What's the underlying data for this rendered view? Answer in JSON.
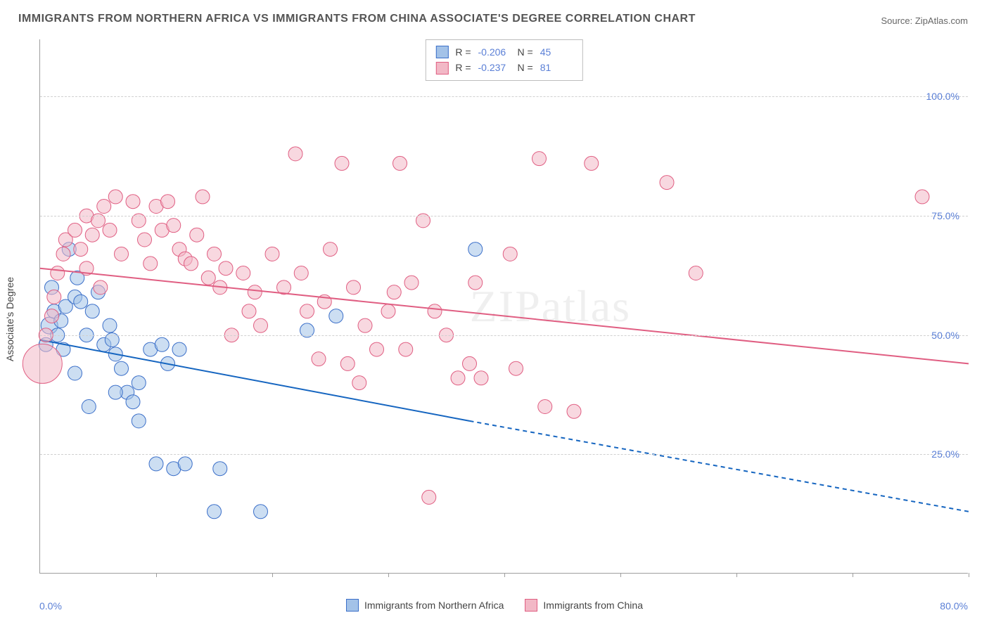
{
  "chart": {
    "type": "scatter",
    "title": "IMMIGRANTS FROM NORTHERN AFRICA VS IMMIGRANTS FROM CHINA ASSOCIATE'S DEGREE CORRELATION CHART",
    "source": "Source: ZipAtlas.com",
    "watermark": "ZIPatlas",
    "y_axis_title": "Associate's Degree",
    "xlim": [
      0,
      80
    ],
    "ylim": [
      0,
      112
    ],
    "x_ticks": [
      0,
      10,
      20,
      30,
      40,
      50,
      60,
      70,
      80
    ],
    "y_gridlines": [
      25,
      50,
      75,
      100
    ],
    "y_tick_labels": [
      "25.0%",
      "50.0%",
      "75.0%",
      "100.0%"
    ],
    "x_min_label": "0.0%",
    "x_max_label": "80.0%",
    "background_color": "#ffffff",
    "grid_color": "#d0d0d0",
    "axis_color": "#9e9e9e",
    "tick_label_color": "#5a7fd6",
    "title_color": "#555555",
    "title_fontsize": 16,
    "label_fontsize": 14
  },
  "series": [
    {
      "name": "Immigrants from Northern Africa",
      "fill_color": "#a3c2e8",
      "stroke_color": "#3b6fc9",
      "line_color": "#1565c0",
      "fill_opacity": 0.55,
      "marker_radius": 10,
      "r_value": "-0.206",
      "n_value": "45",
      "trend": {
        "x1": 0,
        "y1": 49,
        "x2": 37,
        "y2": 32,
        "x2_ext": 80,
        "y2_ext": 13
      },
      "points": [
        [
          0.5,
          48
        ],
        [
          0.8,
          52,
          12
        ],
        [
          1.0,
          60
        ],
        [
          1.2,
          55
        ],
        [
          1.5,
          50
        ],
        [
          1.8,
          53
        ],
        [
          2.0,
          47
        ],
        [
          2.2,
          56
        ],
        [
          2.5,
          68
        ],
        [
          3.0,
          58
        ],
        [
          3.2,
          62
        ],
        [
          3.5,
          57
        ],
        [
          4.0,
          50
        ],
        [
          4.5,
          55
        ],
        [
          5.0,
          59
        ],
        [
          5.5,
          48
        ],
        [
          6.0,
          52
        ],
        [
          6.2,
          49
        ],
        [
          6.5,
          46
        ],
        [
          7.0,
          43
        ],
        [
          7.5,
          38
        ],
        [
          8.0,
          36
        ],
        [
          8.5,
          40
        ],
        [
          4.2,
          35
        ],
        [
          3.0,
          42
        ],
        [
          9.5,
          47
        ],
        [
          10.5,
          48
        ],
        [
          11.0,
          44
        ],
        [
          12.0,
          47
        ],
        [
          8.5,
          32
        ],
        [
          10.0,
          23
        ],
        [
          11.5,
          22
        ],
        [
          12.5,
          23
        ],
        [
          15.0,
          13
        ],
        [
          15.5,
          22
        ],
        [
          19.0,
          13
        ],
        [
          23.0,
          51
        ],
        [
          25.5,
          54
        ],
        [
          37.5,
          68
        ],
        [
          6.5,
          38
        ]
      ]
    },
    {
      "name": "Immigrants from China",
      "fill_color": "#f2b8c6",
      "stroke_color": "#e05e82",
      "line_color": "#e05e82",
      "fill_opacity": 0.55,
      "marker_radius": 10,
      "r_value": "-0.237",
      "n_value": "81",
      "trend": {
        "x1": 0,
        "y1": 64,
        "x2": 80,
        "y2": 44
      },
      "points": [
        [
          0.2,
          44,
          28
        ],
        [
          0.5,
          50
        ],
        [
          1.0,
          54
        ],
        [
          1.2,
          58
        ],
        [
          1.5,
          63
        ],
        [
          2.0,
          67
        ],
        [
          2.2,
          70
        ],
        [
          3.0,
          72
        ],
        [
          3.5,
          68
        ],
        [
          4.0,
          75
        ],
        [
          4.5,
          71
        ],
        [
          5.0,
          74
        ],
        [
          5.5,
          77
        ],
        [
          6.0,
          72
        ],
        [
          6.5,
          79
        ],
        [
          8.0,
          78
        ],
        [
          8.5,
          74
        ],
        [
          9.0,
          70
        ],
        [
          10.0,
          77
        ],
        [
          10.5,
          72
        ],
        [
          11.0,
          78
        ],
        [
          11.5,
          73
        ],
        [
          12.0,
          68
        ],
        [
          12.5,
          66
        ],
        [
          14.0,
          79
        ],
        [
          13.0,
          65
        ],
        [
          14.5,
          62
        ],
        [
          15.0,
          67
        ],
        [
          15.5,
          60
        ],
        [
          16.0,
          64
        ],
        [
          17.5,
          63
        ],
        [
          18.0,
          55
        ],
        [
          18.5,
          59
        ],
        [
          19.0,
          52
        ],
        [
          20.0,
          67
        ],
        [
          21.0,
          60
        ],
        [
          22.0,
          88
        ],
        [
          22.5,
          63
        ],
        [
          23.0,
          55
        ],
        [
          24.0,
          45
        ],
        [
          24.5,
          57
        ],
        [
          25.0,
          68
        ],
        [
          26.0,
          86
        ],
        [
          26.5,
          44
        ],
        [
          27.0,
          60
        ],
        [
          27.5,
          40
        ],
        [
          28.0,
          52
        ],
        [
          29.0,
          47
        ],
        [
          30.0,
          55
        ],
        [
          30.5,
          59
        ],
        [
          31.0,
          86
        ],
        [
          31.5,
          47
        ],
        [
          32.0,
          61
        ],
        [
          33.0,
          74
        ],
        [
          33.5,
          16
        ],
        [
          34.0,
          55
        ],
        [
          35.0,
          50
        ],
        [
          36.0,
          41
        ],
        [
          37.0,
          44
        ],
        [
          37.5,
          61
        ],
        [
          38.0,
          41
        ],
        [
          40.5,
          67
        ],
        [
          41.0,
          43
        ],
        [
          43.0,
          87
        ],
        [
          43.5,
          35
        ],
        [
          46.0,
          34
        ],
        [
          47.5,
          86
        ],
        [
          54.0,
          82
        ],
        [
          56.5,
          63
        ],
        [
          76.0,
          79
        ],
        [
          4.0,
          64
        ],
        [
          7.0,
          67
        ],
        [
          9.5,
          65
        ],
        [
          13.5,
          71
        ],
        [
          16.5,
          50
        ],
        [
          5.2,
          60
        ]
      ]
    }
  ],
  "bottom_legend": [
    {
      "label": "Immigrants from Northern Africa",
      "fill": "#a3c2e8",
      "stroke": "#3b6fc9"
    },
    {
      "label": "Immigrants from China",
      "fill": "#f2b8c6",
      "stroke": "#e05e82"
    }
  ],
  "top_legend": {
    "r_label": "R =",
    "n_label": "N ="
  }
}
